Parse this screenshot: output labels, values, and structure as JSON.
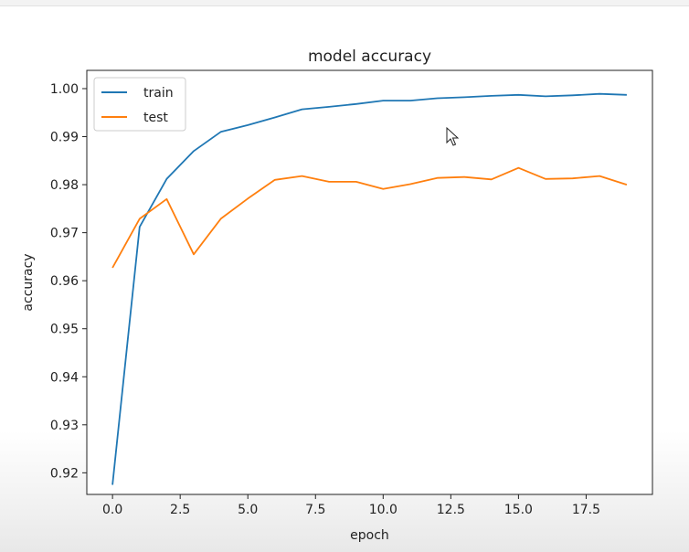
{
  "chart_data": {
    "type": "line",
    "title": "model accuracy",
    "xlabel": "epoch",
    "ylabel": "accuracy",
    "xlim": [
      -0.95,
      19.95
    ],
    "ylim": [
      0.9155,
      1.0038
    ],
    "xticks": [
      0.0,
      2.5,
      5.0,
      7.5,
      10.0,
      12.5,
      15.0,
      17.5
    ],
    "xtick_labels": [
      "0.0",
      "2.5",
      "5.0",
      "7.5",
      "10.0",
      "12.5",
      "15.0",
      "17.5"
    ],
    "yticks": [
      0.92,
      0.93,
      0.94,
      0.95,
      0.96,
      0.97,
      0.98,
      0.99,
      1.0
    ],
    "ytick_labels": [
      "0.92",
      "0.93",
      "0.94",
      "0.95",
      "0.96",
      "0.97",
      "0.98",
      "0.99",
      "1.00"
    ],
    "legend_position": "top-left",
    "grid": false,
    "x": [
      0,
      1,
      2,
      3,
      4,
      5,
      6,
      7,
      8,
      9,
      10,
      11,
      12,
      13,
      14,
      15,
      16,
      17,
      18,
      19
    ],
    "series": [
      {
        "name": "train",
        "color": "#1f77b4",
        "values": [
          0.9175,
          0.9712,
          0.9812,
          0.987,
          0.991,
          0.9924,
          0.994,
          0.9957,
          0.9962,
          0.9968,
          0.9975,
          0.9975,
          0.998,
          0.9982,
          0.9985,
          0.9987,
          0.9984,
          0.9986,
          0.9989,
          0.9987
        ]
      },
      {
        "name": "test",
        "color": "#ff7f0e",
        "values": [
          0.9627,
          0.9729,
          0.977,
          0.9655,
          0.9729,
          0.9771,
          0.981,
          0.9818,
          0.9806,
          0.9806,
          0.9791,
          0.9801,
          0.9814,
          0.9816,
          0.9811,
          0.9835,
          0.9812,
          0.9813,
          0.9818,
          0.98
        ]
      }
    ]
  }
}
